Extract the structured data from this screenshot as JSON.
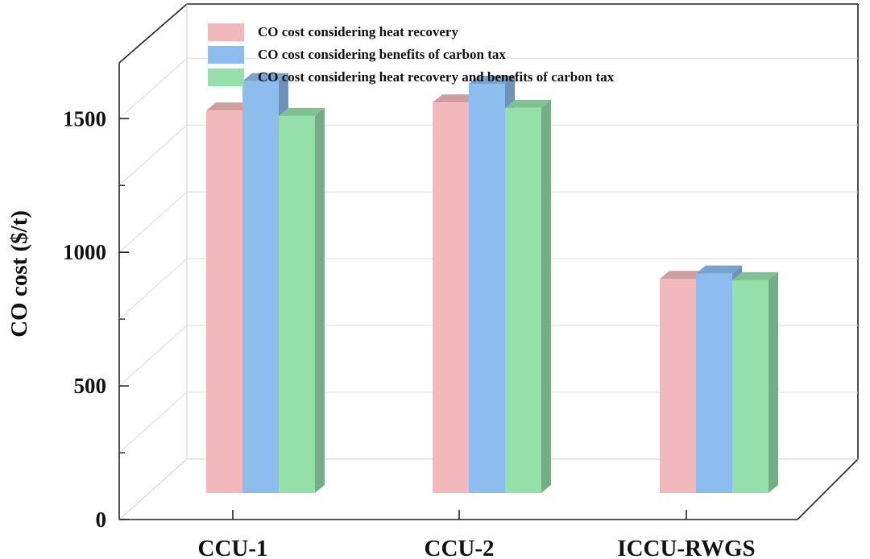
{
  "chart_data": {
    "type": "bar",
    "style": "3d-clustered",
    "title": "",
    "xlabel": "",
    "ylabel": "CO cost ($/t)",
    "ylim": [
      0,
      1700
    ],
    "yticks": [
      0,
      500,
      1000,
      1500
    ],
    "ytick_labels": [
      "0",
      "500",
      "1000",
      "1500"
    ],
    "grid": true,
    "legend_position": "top-left",
    "categories": [
      "CCU-1",
      "CCU-2",
      "ICCU-RWGS"
    ],
    "series": [
      {
        "name": "CO cost considering heat recovery",
        "color": "#f2b8bb",
        "values": [
          1440,
          1470,
          810
        ]
      },
      {
        "name": "CO cost considering benefits of carbon tax",
        "color": "#8dbcee",
        "values": [
          1550,
          1540,
          830
        ]
      },
      {
        "name": "CO cost considering heat recovery and benefits of carbon tax",
        "color": "#95dfab",
        "values": [
          1420,
          1450,
          805
        ]
      }
    ]
  }
}
